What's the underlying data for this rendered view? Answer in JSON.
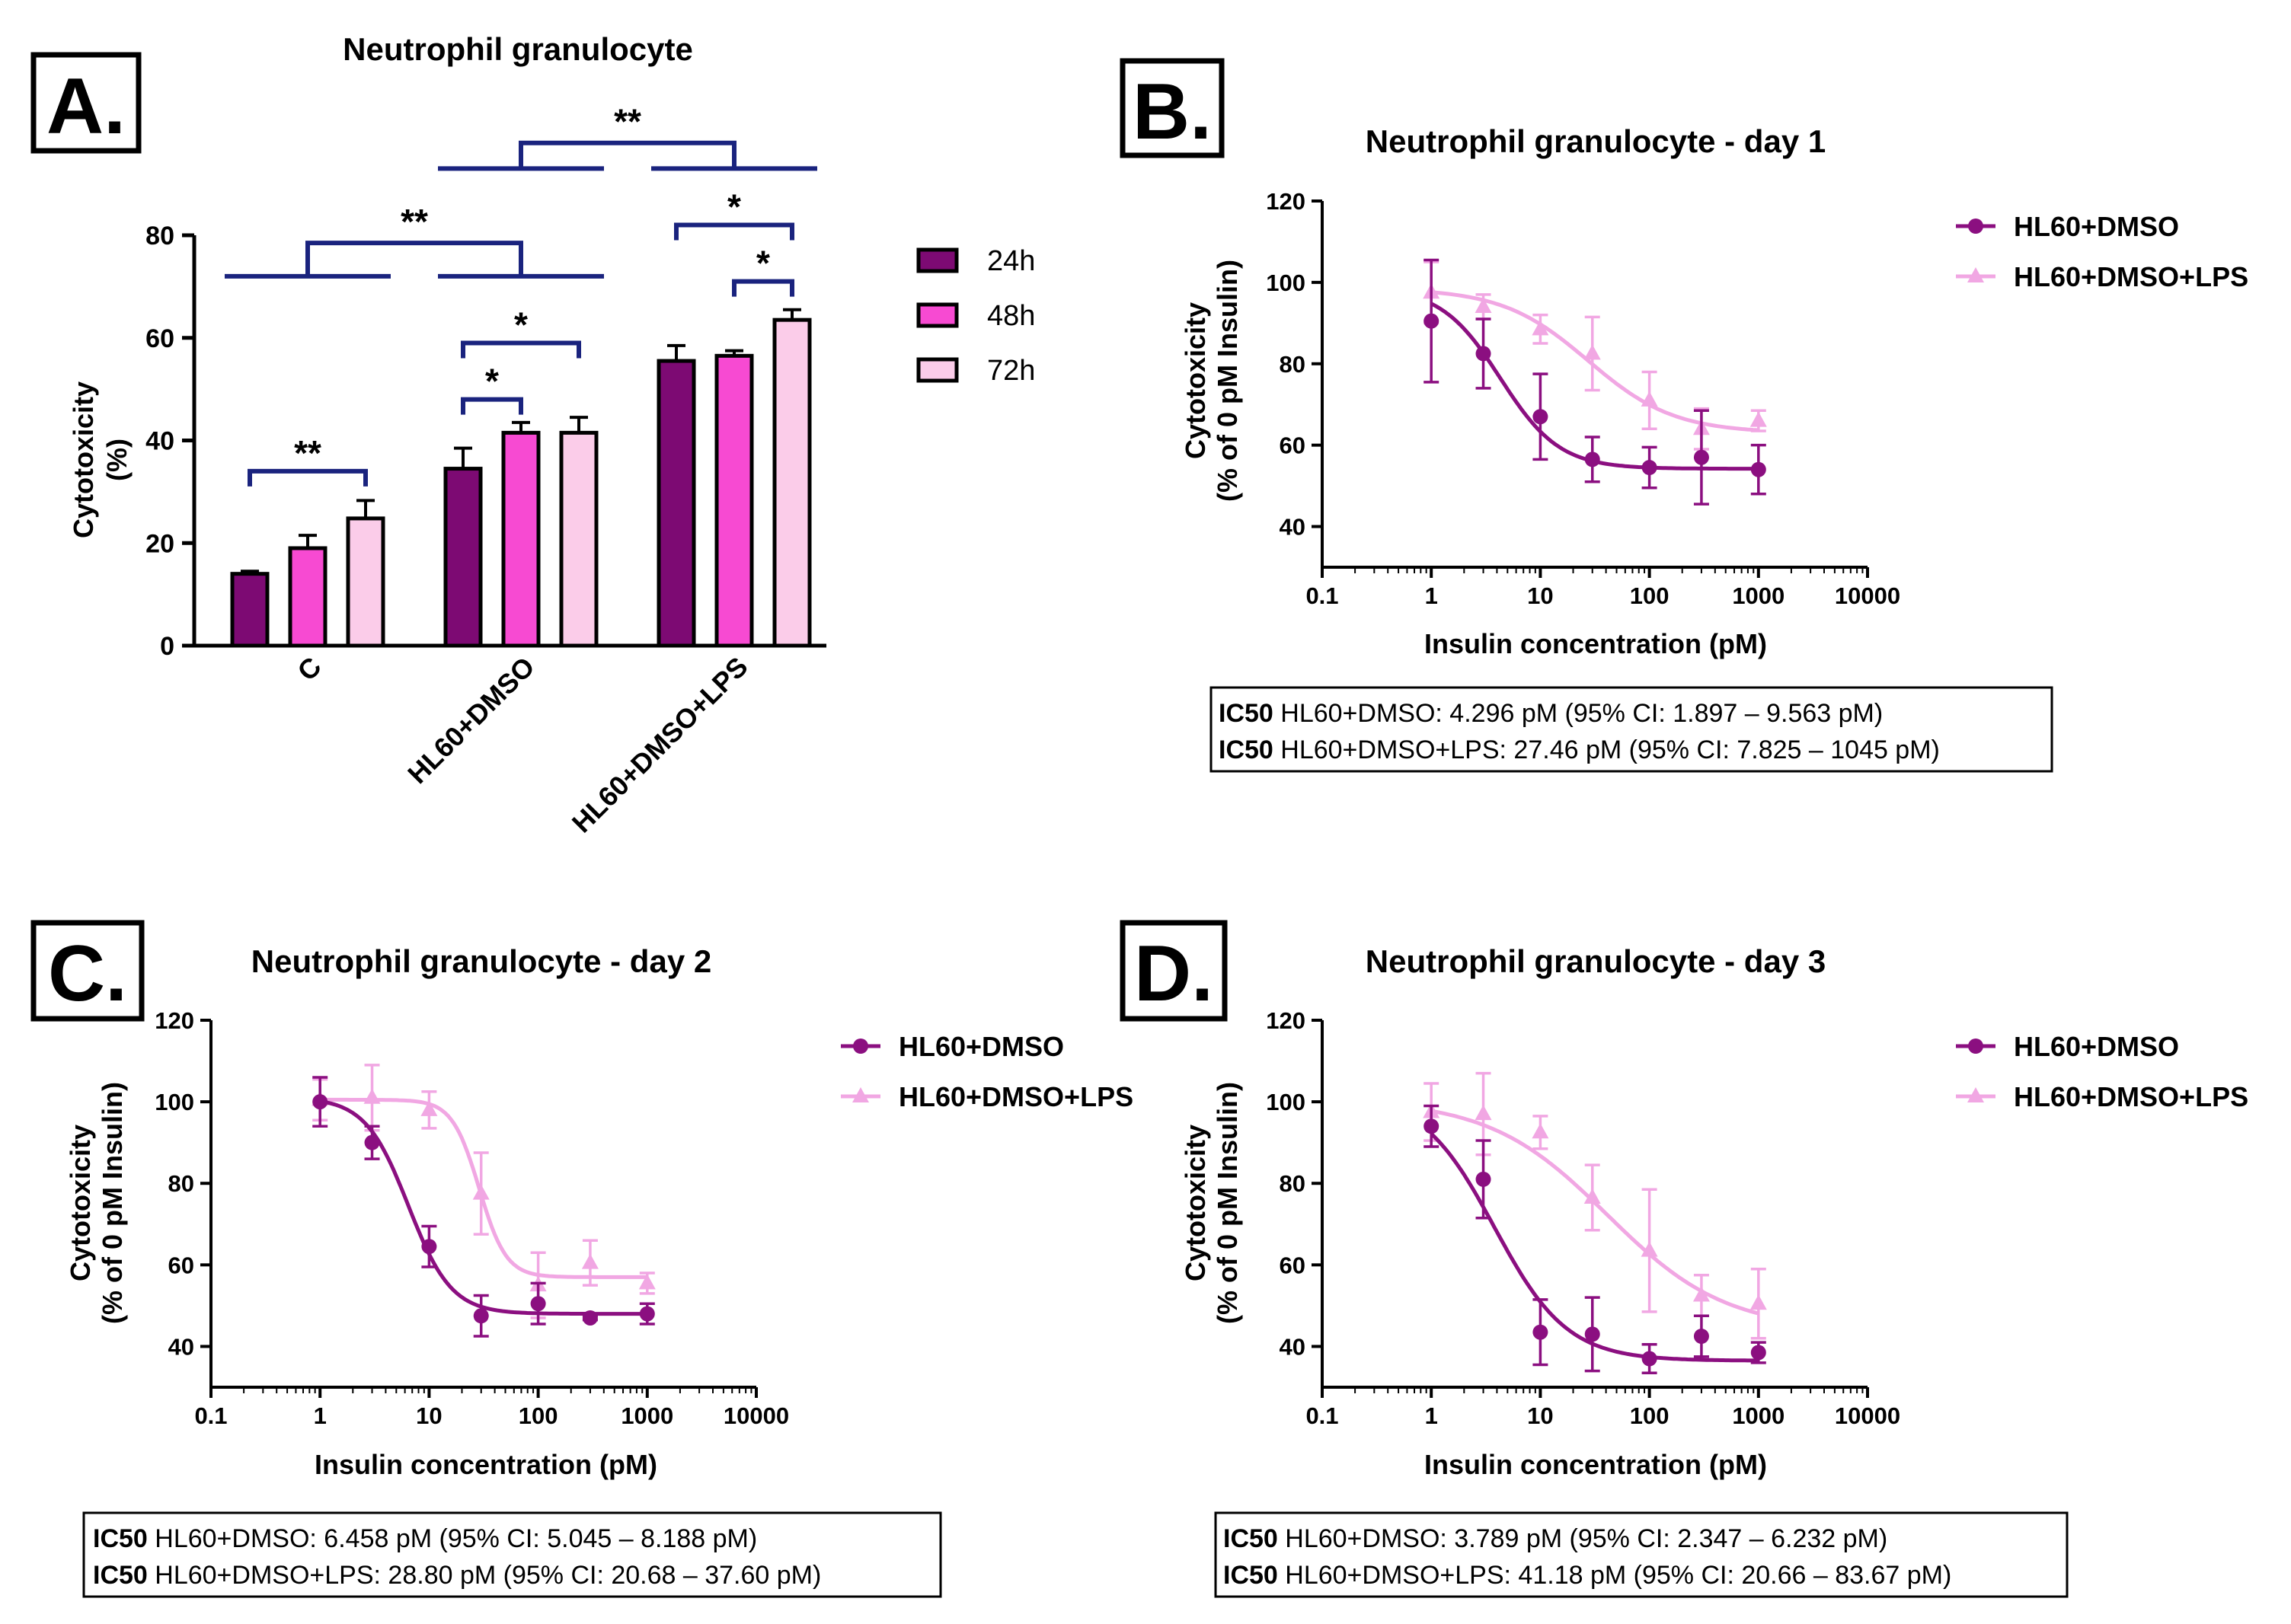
{
  "colors": {
    "h24": "#7d0a73",
    "h48": "#f74ad2",
    "h72": "#fbcce9",
    "dmso": "#8b0f80",
    "lps": "#f1a7e3",
    "bracket": "#1a237e"
  },
  "chart_data": [
    {
      "panel": "A.",
      "type": "bar",
      "title": "Neutrophil granulocyte",
      "ylabel_line1": "Cytotoxicity",
      "ylabel_line2": "(%)",
      "ylim": [
        0,
        80
      ],
      "yticks": [
        "0",
        "20",
        "40",
        "60",
        "80"
      ],
      "categories": [
        "C",
        "HL60+DMSO",
        "HL60+DMSO+LPS"
      ],
      "series": [
        {
          "name": "24h",
          "values": [
            14,
            34.5,
            55.5
          ],
          "errors": [
            0.5,
            4,
            3
          ]
        },
        {
          "name": "48h",
          "values": [
            19,
            41.5,
            56.5
          ],
          "errors": [
            2.5,
            2,
            1
          ]
        },
        {
          "name": "72h",
          "values": [
            24.8,
            41.5,
            63.5
          ],
          "errors": [
            3.5,
            3,
            2
          ]
        }
      ],
      "significance": [
        {
          "type": "pair",
          "group_from": 0,
          "series_from": 0,
          "group_to": 0,
          "series_to": 2,
          "label": "**",
          "level": 34
        },
        {
          "type": "pair",
          "group_from": 1,
          "series_from": 0,
          "group_to": 1,
          "series_to": 1,
          "label": "*",
          "level": 48
        },
        {
          "type": "pair",
          "group_from": 1,
          "series_from": 0,
          "group_to": 1,
          "series_to": 2,
          "label": "*",
          "level": 59
        },
        {
          "type": "pair",
          "group_from": 2,
          "series_from": 1,
          "group_to": 2,
          "series_to": 2,
          "label": "*",
          "level": 71
        },
        {
          "type": "pair",
          "group_from": 2,
          "series_from": 0,
          "group_to": 2,
          "series_to": 2,
          "label": "*",
          "level": 82
        },
        {
          "type": "group",
          "group_from": 0,
          "group_to": 1,
          "label": "**",
          "level": 72,
          "top": 78.5
        },
        {
          "type": "group",
          "group_from": 1,
          "group_to": 2,
          "label": "**",
          "level": 93,
          "top": 98
        }
      ]
    },
    {
      "panel": "B.",
      "type": "scatter",
      "title": "Neutrophil granulocyte - day 1",
      "xlabel": "Insulin concentration (pM)",
      "ylabel_line1": "Cytotoxicity",
      "ylabel_line2": "(% of 0 pM Insulin)",
      "xlog": true,
      "xticks": [
        "0.1",
        "1",
        "10",
        "100",
        "1000",
        "10000"
      ],
      "ylim": [
        30,
        120
      ],
      "yticks": [
        "40",
        "60",
        "80",
        "100",
        "120"
      ],
      "x": [
        1,
        3,
        10,
        30,
        100,
        300,
        1000
      ],
      "series": [
        {
          "name": "HL60+DMSO",
          "marker": "circle",
          "values": [
            90.5,
            82.5,
            67,
            56.5,
            54.5,
            57,
            54
          ],
          "errors": [
            15,
            8.5,
            10.5,
            5.5,
            5,
            11.5,
            6
          ],
          "fit": {
            "top": 98.7,
            "bottom": 54.2,
            "ic50": 4.296,
            "hill": 1.6
          }
        },
        {
          "name": "HL60+DMSO+LPS",
          "marker": "triangle",
          "values": [
            97.5,
            94,
            88.5,
            82.5,
            71,
            64,
            66
          ],
          "errors": [
            7.5,
            3,
            3.5,
            9,
            7,
            5,
            2.5
          ],
          "fit": {
            "top": 98.5,
            "bottom": 63,
            "ic50": 27.46,
            "hill": 1.1
          }
        }
      ],
      "ic50_box": [
        {
          "bold": "IC50",
          "text": " HL60+DMSO: 4.296 pM (95% CI: 1.897 – 9.563 pM)"
        },
        {
          "bold": "IC50",
          "text": " HL60+DMSO+LPS: 27.46 pM (95% CI: 7.825 – 1045 pM)"
        }
      ]
    },
    {
      "panel": "C.",
      "type": "scatter",
      "title": "Neutrophil granulocyte - day 2",
      "xlabel": "Insulin concentration (pM)",
      "ylabel_line1": "Cytotoxicity",
      "ylabel_line2": "(% of 0 pM Insulin)",
      "xlog": true,
      "xticks": [
        "0.1",
        "1",
        "10",
        "100",
        "1000",
        "10000"
      ],
      "ylim": [
        30,
        120
      ],
      "yticks": [
        "40",
        "60",
        "80",
        "100",
        "120"
      ],
      "x": [
        1,
        3,
        10,
        30,
        100,
        300,
        1000
      ],
      "series": [
        {
          "name": "HL60+DMSO",
          "marker": "circle",
          "values": [
            100,
            90,
            64.5,
            47.5,
            50.5,
            47,
            48
          ],
          "errors": [
            6,
            4,
            5,
            5,
            5,
            0.5,
            2.5
          ],
          "fit": {
            "top": 101,
            "bottom": 48,
            "ic50": 6.458,
            "hill": 2.2
          }
        },
        {
          "name": "HL60+DMSO+LPS",
          "marker": "triangle",
          "values": [
            100.5,
            101,
            98,
            77.5,
            55,
            60.5,
            55.5
          ],
          "errors": [
            5,
            8,
            4.5,
            10,
            8,
            5.5,
            2.5
          ],
          "fit": {
            "top": 100.5,
            "bottom": 57,
            "ic50": 28.8,
            "hill": 3.5
          }
        }
      ],
      "ic50_box": [
        {
          "bold": "IC50",
          "text": " HL60+DMSO: 6.458 pM (95% CI: 5.045 – 8.188 pM)"
        },
        {
          "bold": "IC50",
          "text": " HL60+DMSO+LPS: 28.80 pM (95% CI: 20.68 – 37.60 pM)"
        }
      ]
    },
    {
      "panel": "D.",
      "type": "scatter",
      "title": "Neutrophil granulocyte - day 3",
      "xlabel": "Insulin concentration (pM)",
      "ylabel_line1": "Cytotoxicity",
      "ylabel_line2": "(% of 0 pM Insulin)",
      "xlog": true,
      "xticks": [
        "0.1",
        "1",
        "10",
        "100",
        "1000",
        "10000"
      ],
      "ylim": [
        30,
        120
      ],
      "yticks": [
        "40",
        "60",
        "80",
        "100",
        "120"
      ],
      "x": [
        1,
        3,
        10,
        30,
        100,
        300,
        1000
      ],
      "series": [
        {
          "name": "HL60+DMSO",
          "marker": "circle",
          "values": [
            94,
            81,
            43.5,
            43,
            37,
            42.5,
            38.5
          ],
          "errors": [
            5,
            9.5,
            8,
            9,
            3.5,
            5,
            2.5
          ],
          "fit": {
            "top": 102,
            "bottom": 36.5,
            "ic50": 3.789,
            "hill": 1.3
          }
        },
        {
          "name": "HL60+DMSO+LPS",
          "marker": "triangle",
          "values": [
            97.5,
            97,
            92.5,
            76.5,
            63.5,
            52.5,
            50.5
          ],
          "errors": [
            7,
            10,
            4,
            8,
            15,
            5,
            8.5
          ],
          "fit": {
            "top": 100.5,
            "bottom": 44,
            "ic50": 41.18,
            "hill": 0.8
          }
        }
      ],
      "ic50_box": [
        {
          "bold": "IC50",
          "text": " HL60+DMSO: 3.789 pM (95% CI: 2.347 – 6.232 pM)"
        },
        {
          "bold": "IC50",
          "text": " HL60+DMSO+LPS: 41.18 pM (95% CI: 20.66 – 83.67 pM)"
        }
      ]
    }
  ]
}
